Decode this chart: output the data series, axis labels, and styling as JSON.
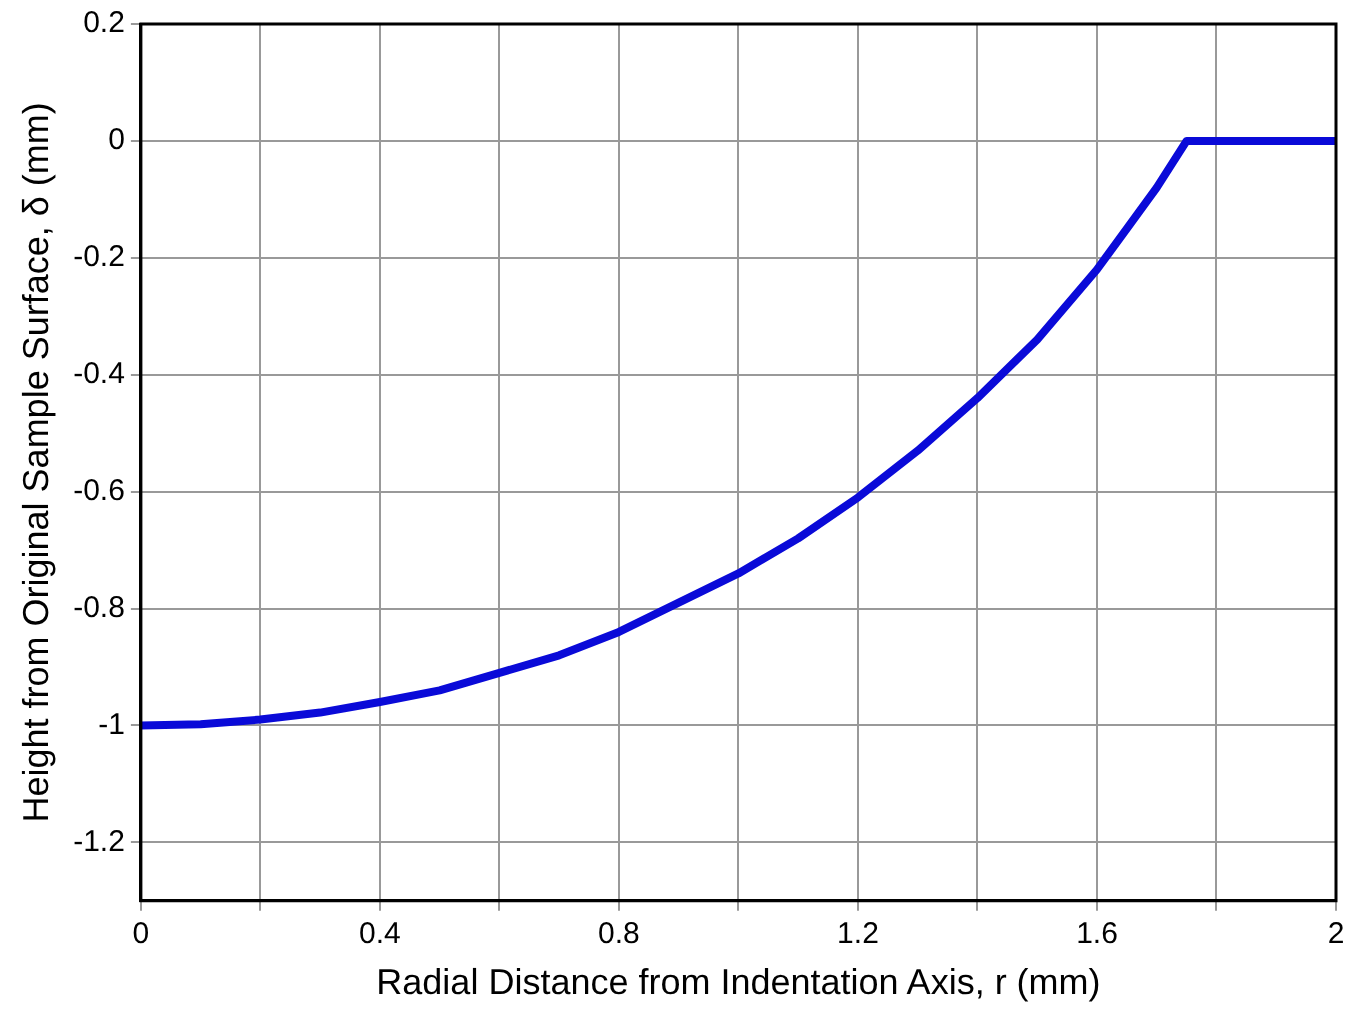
{
  "chart_data": {
    "type": "line",
    "xlabel": "Radial Distance from Indentation Axis, r (mm)",
    "ylabel": "Height from Original Sample Surface, δ (mm)",
    "x": [
      0,
      0.1,
      0.2,
      0.3,
      0.4,
      0.5,
      0.6,
      0.7,
      0.8,
      0.9,
      1.0,
      1.1,
      1.2,
      1.3,
      1.4,
      1.5,
      1.6,
      1.65,
      1.7,
      1.75,
      2
    ],
    "series": [
      {
        "color": "#0a0ad8",
        "values": [
          -1,
          -0.998,
          -0.99,
          -0.978,
          -0.96,
          -0.94,
          -0.91,
          -0.88,
          -0.84,
          -0.79,
          -0.74,
          -0.68,
          -0.61,
          -0.53,
          -0.44,
          -0.34,
          -0.22,
          -0.15,
          -0.08,
          0,
          0
        ]
      }
    ],
    "xlim": [
      0,
      2
    ],
    "ylim": [
      -1.3,
      0.2
    ],
    "xticks": [
      0,
      {
        "value": 0.2,
        "label": null
      },
      0.4,
      {
        "value": 0.6,
        "label": null
      },
      0.8,
      {
        "value": 1.0,
        "label": null
      },
      1.2,
      {
        "value": 1.4,
        "label": null
      },
      1.6,
      {
        "value": 1.8,
        "label": null
      },
      2
    ],
    "yticks": [
      -1.2,
      -1,
      -0.8,
      -0.6,
      -0.4,
      -0.2,
      0,
      0.2
    ],
    "grid": true,
    "legend": false,
    "marker": "none",
    "line_style": "solid"
  }
}
